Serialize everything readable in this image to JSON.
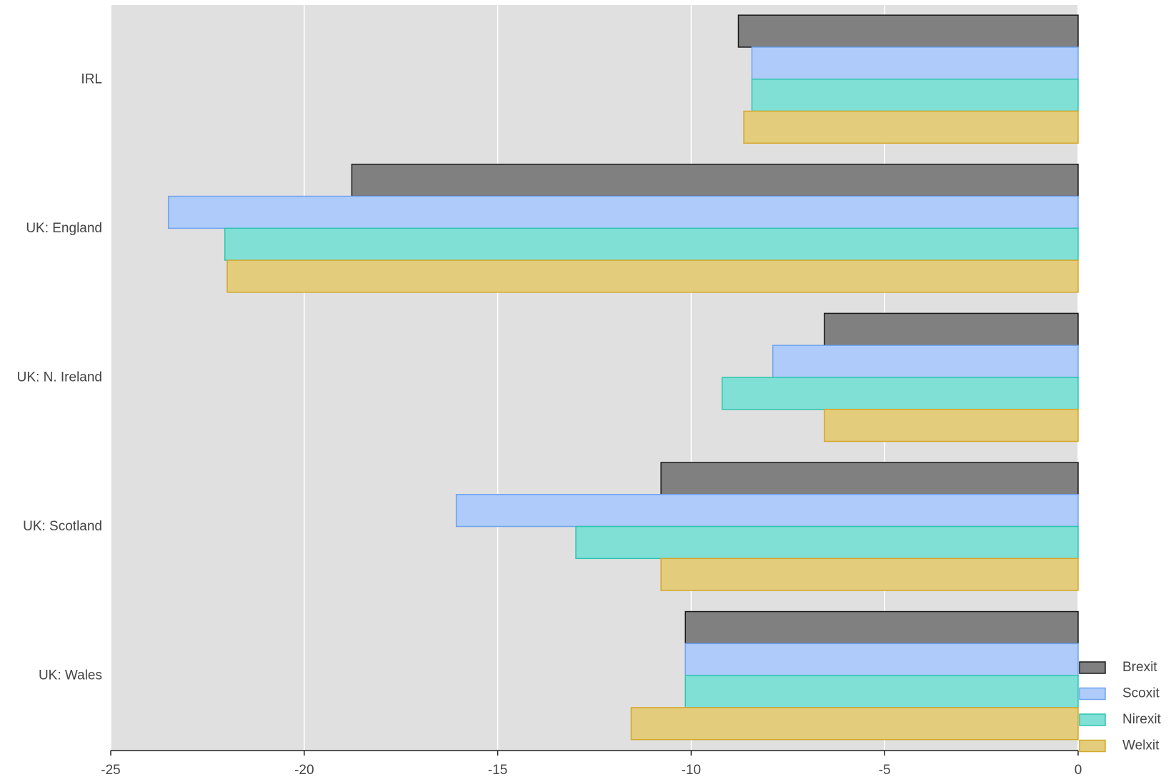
{
  "chart_data": {
    "type": "bar",
    "orientation": "horizontal",
    "categories": [
      "IRL",
      "UK: England",
      "UK: N. Ireland",
      "UK: Scotland",
      "UK: Wales"
    ],
    "series": [
      {
        "name": "Brexit",
        "color": "#808080",
        "stroke": "#1a1a1a",
        "values": [
          -8.78,
          -18.77,
          -6.56,
          -10.78,
          -10.15
        ]
      },
      {
        "name": "Scoxit",
        "color": "#aecbfa",
        "stroke": "#6fa3ef",
        "values": [
          -8.43,
          -23.51,
          -7.89,
          -16.07,
          -10.15
        ]
      },
      {
        "name": "Nirexit",
        "color": "#80e0d6",
        "stroke": "#2ec4b0",
        "values": [
          -8.43,
          -22.05,
          -9.2,
          -12.98,
          -10.15
        ]
      },
      {
        "name": "Welxit",
        "color": "#e3cd7c",
        "stroke": "#d4a72c",
        "values": [
          -8.64,
          -21.99,
          -6.56,
          -10.78,
          -11.55
        ]
      }
    ],
    "xlim": [
      -25,
      0
    ],
    "xticks": [
      -25,
      -20,
      -15,
      -10,
      -5,
      0
    ],
    "grid": true,
    "legend": "bottom-right"
  }
}
